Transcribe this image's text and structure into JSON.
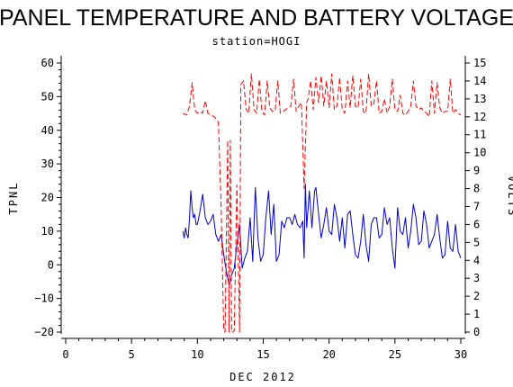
{
  "chart_data": {
    "type": "line",
    "title": "PANEL TEMPERATURE AND BATTERY VOLTAGE",
    "subtitle": "station=HOGI",
    "xlabel": "DEC 2012",
    "ylabel_left": "TPNL",
    "ylabel_right": "VOLTS",
    "xlim": [
      0,
      30
    ],
    "ylim_left": [
      -20,
      60
    ],
    "ylim_right": [
      0,
      15
    ],
    "x_ticks": [
      0,
      5,
      10,
      15,
      20,
      25,
      30
    ],
    "y_left_ticks": [
      -20,
      -10,
      0,
      10,
      20,
      30,
      40,
      50,
      60
    ],
    "y_right_ticks": [
      0,
      1,
      2,
      3,
      4,
      5,
      6,
      7,
      8,
      9,
      10,
      11,
      12,
      13,
      14,
      15
    ],
    "grid": false,
    "series": [
      {
        "axis": "left",
        "color": "#0000cc",
        "style": "solid",
        "x": [
          8.9,
          9.0,
          9.1,
          9.2,
          9.3,
          9.4,
          9.5,
          9.6,
          9.7,
          9.8,
          9.9,
          10.0,
          10.2,
          10.4,
          10.6,
          10.8,
          11.0,
          11.2,
          11.4,
          11.6,
          11.8,
          12.0,
          12.2,
          12.4,
          12.5,
          12.6,
          12.8,
          13.0,
          13.2,
          13.4,
          13.6,
          13.8,
          14.0,
          14.2,
          14.4,
          14.6,
          14.8,
          15.0,
          15.2,
          15.4,
          15.6,
          15.8,
          16.0,
          16.2,
          16.4,
          16.6,
          16.8,
          17.0,
          17.2,
          17.4,
          17.6,
          17.8,
          18.0,
          18.1,
          18.2,
          18.3,
          18.5,
          18.7,
          18.9,
          19.0,
          19.2,
          19.4,
          19.6,
          19.8,
          20.0,
          20.2,
          20.4,
          20.6,
          20.8,
          21.0,
          21.2,
          21.4,
          21.6,
          21.8,
          22.0,
          22.2,
          22.4,
          22.6,
          22.8,
          23.0,
          23.2,
          23.4,
          23.6,
          23.8,
          24.0,
          24.2,
          24.4,
          24.6,
          24.8,
          25.0,
          25.2,
          25.4,
          25.6,
          25.8,
          26.0,
          26.2,
          26.4,
          26.6,
          26.8,
          27.0,
          27.2,
          27.4,
          27.6,
          27.8,
          28.0,
          28.2,
          28.4,
          28.6,
          28.8,
          29.0,
          29.2,
          29.4,
          29.6,
          29.8,
          30.0
        ],
        "y": [
          10,
          8,
          11,
          9,
          8,
          14,
          22,
          17,
          14,
          15,
          12,
          12,
          16,
          21,
          14,
          12,
          13,
          15,
          9,
          7,
          9,
          3,
          -2,
          -6,
          -5,
          -3,
          -1,
          6,
          12,
          -1,
          2,
          4,
          14,
          1,
          23,
          8,
          1,
          3,
          14,
          22,
          9,
          18,
          1,
          3,
          13,
          11,
          14,
          14,
          12,
          15,
          12,
          11,
          13,
          2,
          24,
          11,
          22,
          11,
          22,
          23,
          15,
          8,
          12,
          17,
          10,
          9,
          18,
          14,
          7,
          14,
          5,
          15,
          16,
          9,
          3,
          2,
          7,
          15,
          6,
          1,
          12,
          14,
          14,
          8,
          9,
          17,
          12,
          14,
          5,
          -1,
          17,
          10,
          9,
          14,
          5,
          10,
          18,
          14,
          6,
          7,
          16,
          12,
          5,
          7,
          9,
          15,
          8,
          2,
          3,
          13,
          5,
          4,
          12,
          4,
          2
        ]
      },
      {
        "axis": "right",
        "color": "#ff0000",
        "style": "dashed",
        "x": [
          8.9,
          9.2,
          9.4,
          9.6,
          9.8,
          10.0,
          10.2,
          10.4,
          10.6,
          10.8,
          11.0,
          11.3,
          11.6,
          11.8,
          12.0,
          12.1,
          12.3,
          12.4,
          12.5,
          12.6,
          12.7,
          12.8,
          13.0,
          13.2,
          13.3,
          13.5,
          13.7,
          13.9,
          14.1,
          14.3,
          14.5,
          14.7,
          14.9,
          15.1,
          15.3,
          15.5,
          15.7,
          15.9,
          16.1,
          16.3,
          16.5,
          16.7,
          16.9,
          17.1,
          17.3,
          17.5,
          17.7,
          17.9,
          18.1,
          18.3,
          18.4,
          18.6,
          18.8,
          19.0,
          19.2,
          19.4,
          19.6,
          19.8,
          20.0,
          20.2,
          20.4,
          20.6,
          20.8,
          21.0,
          21.2,
          21.4,
          21.6,
          21.8,
          22.0,
          22.2,
          22.4,
          22.6,
          22.8,
          23.0,
          23.2,
          23.4,
          23.6,
          23.8,
          24.0,
          24.2,
          24.4,
          24.6,
          24.8,
          25.0,
          25.2,
          25.4,
          25.6,
          25.8,
          26.0,
          26.2,
          26.4,
          26.6,
          26.8,
          27.0,
          27.2,
          27.4,
          27.6,
          27.8,
          28.0,
          28.2,
          28.4,
          28.6,
          28.8,
          29.0,
          29.2,
          29.4,
          29.6,
          29.8,
          30.0
        ],
        "y": [
          12.2,
          12.1,
          12.6,
          13.9,
          12.4,
          12.2,
          12.3,
          12.2,
          12.9,
          12.2,
          12.1,
          12.0,
          11.7,
          7.0,
          0.1,
          0.0,
          10.7,
          0.0,
          10.7,
          0.0,
          0.0,
          0.1,
          8.2,
          0.0,
          13.8,
          14.0,
          12.4,
          12.2,
          14.4,
          12.4,
          12.2,
          14.1,
          12.3,
          12.1,
          14.0,
          12.5,
          12.3,
          12.3,
          14.0,
          12.2,
          12.3,
          12.4,
          12.5,
          12.6,
          14.1,
          12.3,
          12.6,
          12.8,
          8.0,
          12.8,
          13.0,
          14.0,
          12.4,
          14.2,
          12.8,
          14.3,
          12.6,
          14.0,
          12.5,
          14.4,
          12.4,
          12.6,
          14.2,
          12.4,
          12.2,
          14.0,
          12.5,
          14.3,
          12.6,
          12.5,
          14.1,
          12.3,
          12.2,
          14.4,
          12.6,
          12.7,
          14.0,
          12.2,
          12.3,
          13.0,
          12.2,
          12.6,
          14.1,
          12.4,
          12.3,
          13.2,
          12.2,
          12.1,
          12.3,
          12.6,
          14.0,
          12.6,
          12.4,
          12.5,
          12.3,
          12.2,
          12.0,
          14.0,
          12.2,
          13.9,
          12.5,
          12.2,
          12.3,
          12.3,
          14.1,
          12.2,
          12.4,
          12.2,
          12.1
        ]
      }
    ]
  }
}
